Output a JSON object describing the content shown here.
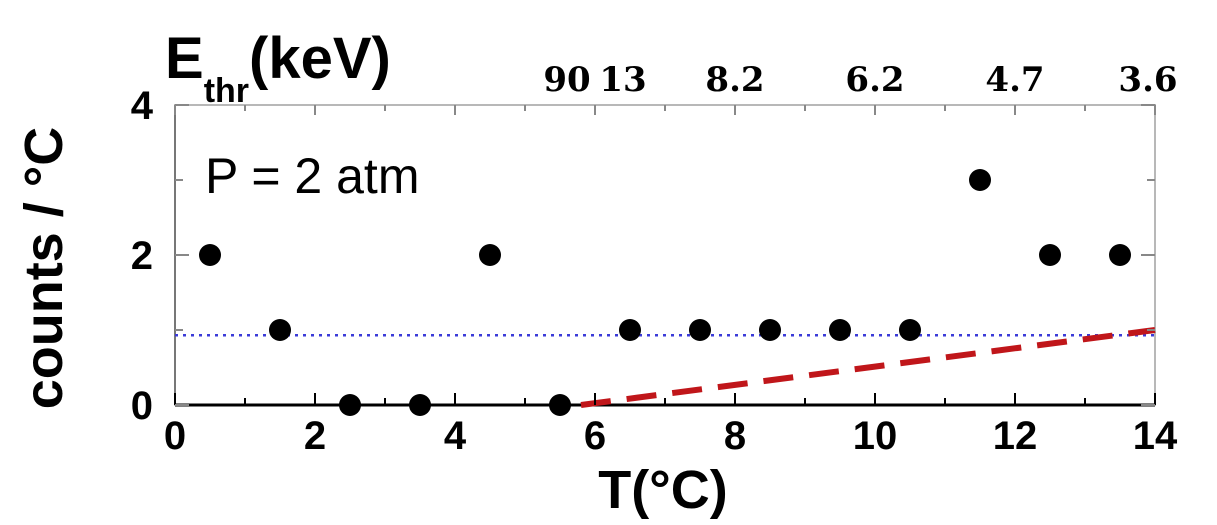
{
  "chart_data": {
    "type": "scatter",
    "xlabel": "T(°C)",
    "ylabel": "counts / °C",
    "top_axis_label": {
      "main": "E",
      "sub": "thr",
      "unit": "(keV)"
    },
    "xlim": [
      0,
      14
    ],
    "ylim": [
      0,
      4
    ],
    "x_ticks": [
      0,
      2,
      4,
      6,
      8,
      10,
      12,
      14
    ],
    "x_tick_labels": [
      "0",
      "2",
      "4",
      "6",
      "8",
      "10",
      "12",
      "14"
    ],
    "y_ticks": [
      0,
      2,
      4
    ],
    "y_tick_labels": [
      "0",
      "2",
      "4"
    ],
    "top_ticks": [
      {
        "x": 5.6,
        "label": "90"
      },
      {
        "x": 6.4,
        "label": "13"
      },
      {
        "x": 8.0,
        "label": "8.2"
      },
      {
        "x": 10.0,
        "label": "6.2"
      },
      {
        "x": 12.0,
        "label": "4.7"
      },
      {
        "x": 13.9,
        "label": "3.6"
      }
    ],
    "annotation": "P = 2 atm",
    "points": {
      "x": [
        0.5,
        1.5,
        2.5,
        3.5,
        4.5,
        5.5,
        6.5,
        7.5,
        8.5,
        9.5,
        10.5,
        11.5,
        12.5,
        13.5
      ],
      "y": [
        2,
        1,
        0,
        0,
        2,
        0,
        1,
        1,
        1,
        1,
        1,
        3,
        2,
        2
      ],
      "color": "#000000"
    },
    "reference_lines": [
      {
        "style": "dotted",
        "color": "#3b3bd8",
        "x": [
          0,
          14
        ],
        "y": [
          0.93,
          0.93
        ]
      },
      {
        "style": "dashed",
        "color": "#c0161a",
        "x": [
          5.8,
          14
        ],
        "y": [
          0.0,
          1.0
        ]
      }
    ],
    "grid": false
  }
}
